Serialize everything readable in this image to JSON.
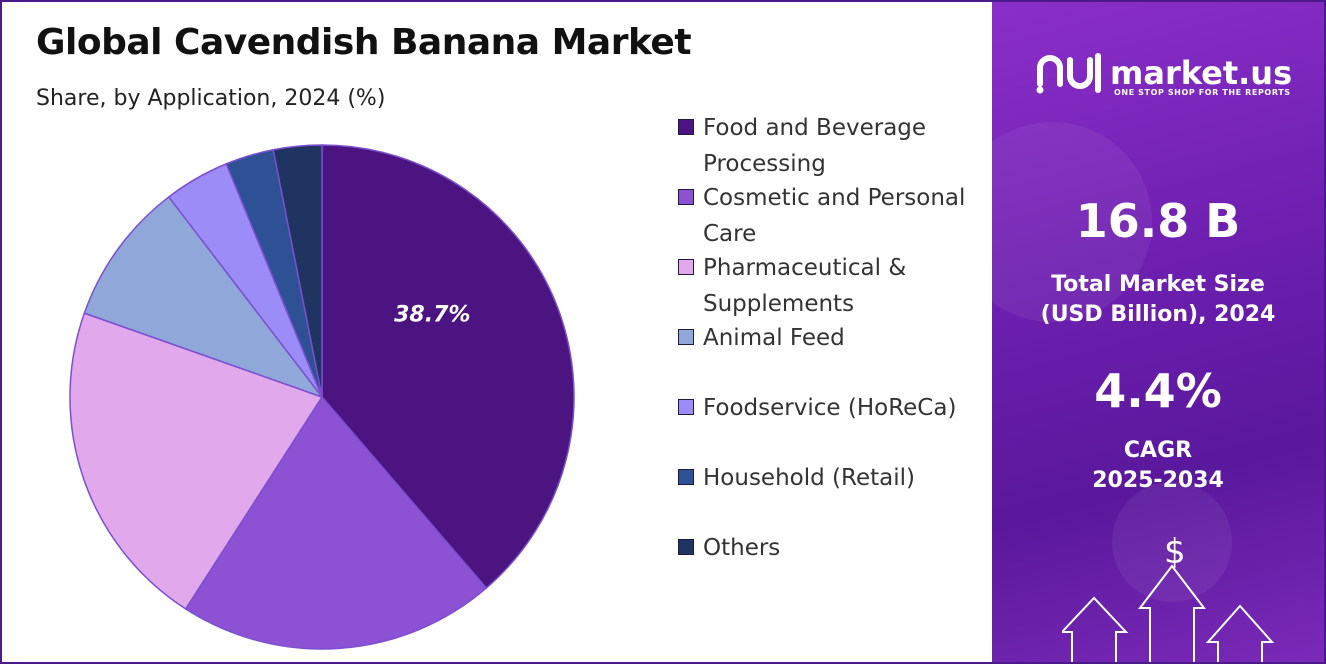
{
  "chart_data": {
    "type": "pie",
    "title": "Global Cavendish Banana Market",
    "subtitle": "Share, by Application, 2024 (%)",
    "categories": [
      "Food and Beverage Processing",
      "Cosmetic and Personal Care",
      "Pharmaceutical & Supplements",
      "Animal Feed",
      "Foodservice (HoReCa)",
      "Household (Retail)",
      "Others"
    ],
    "values": [
      38.7,
      20.4,
      21.3,
      9.2,
      4.2,
      3.1,
      3.1
    ],
    "data_labels": [
      "38.7%",
      "",
      "",
      "",
      "",
      "",
      ""
    ],
    "colors": [
      "#4b1480",
      "#8c52d3",
      "#e2a8ec",
      "#8fa8d9",
      "#9b8cf7",
      "#2e5196",
      "#1f3461"
    ],
    "legend_placement": "right",
    "start_angle_deg": 0,
    "direction": "clockwise"
  },
  "sidebar": {
    "logo_text": "market.us",
    "logo_tagline": "ONE STOP SHOP FOR THE REPORTS",
    "market_size_value": "16.8 B",
    "market_size_label_line1": "Total Market Size",
    "market_size_label_line2": "(USD Billion), 2024",
    "cagr_value": "4.4%",
    "cagr_label_line1": "CAGR",
    "cagr_label_line2": "2025-2034",
    "dollar_glyph": "$",
    "logo_icon": "market-us-logo-icon",
    "arrow_icon": "up-arrow-icon"
  }
}
